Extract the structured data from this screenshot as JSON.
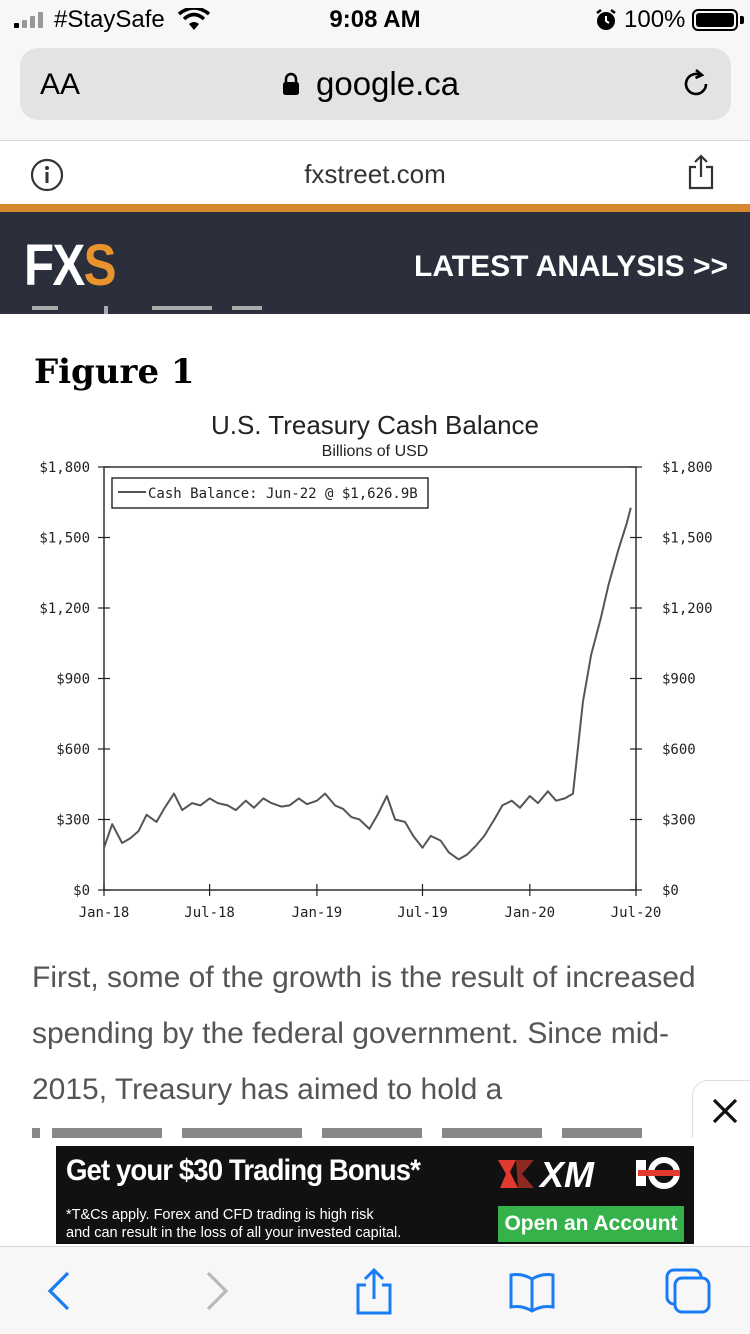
{
  "status_bar": {
    "carrier": "#StaySafe",
    "time": "9:08 AM",
    "battery": "100%"
  },
  "browser": {
    "text_size_label": "AA",
    "address": "google.ca",
    "site_domain": "fxstreet.com"
  },
  "site_header": {
    "logo_main": "FX",
    "logo_accent": "S",
    "latest_link": "LATEST ANALYSIS >>",
    "accent_color": "#e8932b",
    "bg_color": "#2a2f3b"
  },
  "figure": {
    "label": "Figure 1"
  },
  "chart_data": {
    "type": "line",
    "title": "U.S. Treasury Cash Balance",
    "subtitle": "Billions of USD",
    "legend": "Cash Balance: Jun-22 @ $1,626.9B",
    "legend_position": "top-left",
    "x_ticks": [
      "Jan-18",
      "Jul-18",
      "Jan-19",
      "Jul-19",
      "Jan-20",
      "Jul-20"
    ],
    "y_ticks": [
      "$0",
      "$300",
      "$600",
      "$900",
      "$1,200",
      "$1,500",
      "$1,800"
    ],
    "ylim": [
      0,
      1800
    ],
    "grid": false,
    "series": [
      {
        "name": "Cash Balance",
        "color": "#555555",
        "points": [
          [
            "2018-01-01",
            180
          ],
          [
            "2018-01-15",
            280
          ],
          [
            "2018-02-01",
            200
          ],
          [
            "2018-02-15",
            220
          ],
          [
            "2018-03-01",
            250
          ],
          [
            "2018-03-15",
            320
          ],
          [
            "2018-04-01",
            290
          ],
          [
            "2018-04-15",
            350
          ],
          [
            "2018-05-01",
            410
          ],
          [
            "2018-05-15",
            340
          ],
          [
            "2018-06-01",
            370
          ],
          [
            "2018-06-15",
            360
          ],
          [
            "2018-07-01",
            390
          ],
          [
            "2018-07-15",
            370
          ],
          [
            "2018-08-01",
            360
          ],
          [
            "2018-08-15",
            340
          ],
          [
            "2018-09-01",
            380
          ],
          [
            "2018-09-15",
            350
          ],
          [
            "2018-10-01",
            390
          ],
          [
            "2018-10-15",
            370
          ],
          [
            "2018-11-01",
            355
          ],
          [
            "2018-11-15",
            360
          ],
          [
            "2018-12-01",
            390
          ],
          [
            "2018-12-15",
            365
          ],
          [
            "2019-01-01",
            380
          ],
          [
            "2019-01-15",
            410
          ],
          [
            "2019-02-01",
            360
          ],
          [
            "2019-02-15",
            345
          ],
          [
            "2019-03-01",
            310
          ],
          [
            "2019-03-15",
            300
          ],
          [
            "2019-04-01",
            260
          ],
          [
            "2019-04-15",
            320
          ],
          [
            "2019-05-01",
            400
          ],
          [
            "2019-05-15",
            300
          ],
          [
            "2019-06-01",
            290
          ],
          [
            "2019-06-15",
            230
          ],
          [
            "2019-07-01",
            180
          ],
          [
            "2019-07-15",
            230
          ],
          [
            "2019-08-01",
            210
          ],
          [
            "2019-08-15",
            160
          ],
          [
            "2019-09-01",
            130
          ],
          [
            "2019-09-15",
            150
          ],
          [
            "2019-10-01",
            190
          ],
          [
            "2019-10-15",
            230
          ],
          [
            "2019-11-01",
            300
          ],
          [
            "2019-11-15",
            360
          ],
          [
            "2019-12-01",
            380
          ],
          [
            "2019-12-15",
            350
          ],
          [
            "2020-01-01",
            400
          ],
          [
            "2020-01-15",
            370
          ],
          [
            "2020-02-01",
            420
          ],
          [
            "2020-02-15",
            380
          ],
          [
            "2020-03-01",
            390
          ],
          [
            "2020-03-15",
            410
          ],
          [
            "2020-04-01",
            800
          ],
          [
            "2020-04-15",
            1000
          ],
          [
            "2020-05-01",
            1150
          ],
          [
            "2020-05-15",
            1300
          ],
          [
            "2020-06-01",
            1450
          ],
          [
            "2020-06-15",
            1560
          ],
          [
            "2020-06-22",
            1626.9
          ]
        ]
      }
    ]
  },
  "article": {
    "paragraph": "First, some of the growth is the result of increased spending by the federal government. Since mid- 2015, Treasury has aimed to hold a"
  },
  "ad": {
    "headline": "Get your $30 Trading Bonus*",
    "disclaimer_line1": "*T&Cs apply. Forex and CFD trading is high risk",
    "disclaimer_line2": "and can result in the loss of all your invested capital.",
    "brand": "XM",
    "cta": "Open an Account",
    "cta_color": "#36b24a"
  }
}
